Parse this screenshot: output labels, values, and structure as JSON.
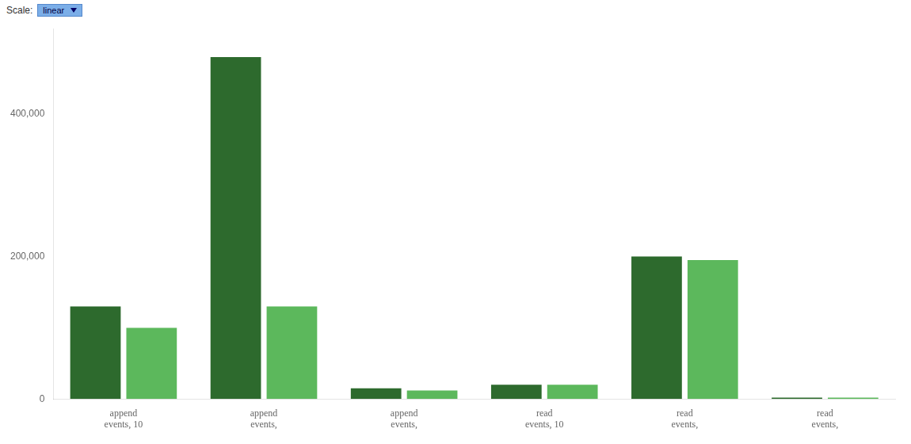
{
  "chart_data": {
    "type": "bar",
    "categories": [
      "append\nevents, 10",
      "append\nevents,",
      "append\nevents,",
      "read\nevents, 10",
      "read\nevents,",
      "read\nevents,"
    ],
    "series": [
      {
        "color": "#2d6a2d",
        "values": [
          130000,
          480000,
          15000,
          20000,
          200000,
          2000
        ]
      },
      {
        "color": "#5cb85c",
        "values": [
          100000,
          130000,
          12000,
          20000,
          195000,
          2000
        ]
      }
    ],
    "ylim": [
      0,
      520000
    ],
    "yticks": [
      0,
      {
        "value": 200000,
        "label": "200,000"
      },
      {
        "value": 400000,
        "label": "400,000"
      }
    ],
    "grid": false,
    "annotations": [
      "Scale:",
      "linear"
    ]
  }
}
